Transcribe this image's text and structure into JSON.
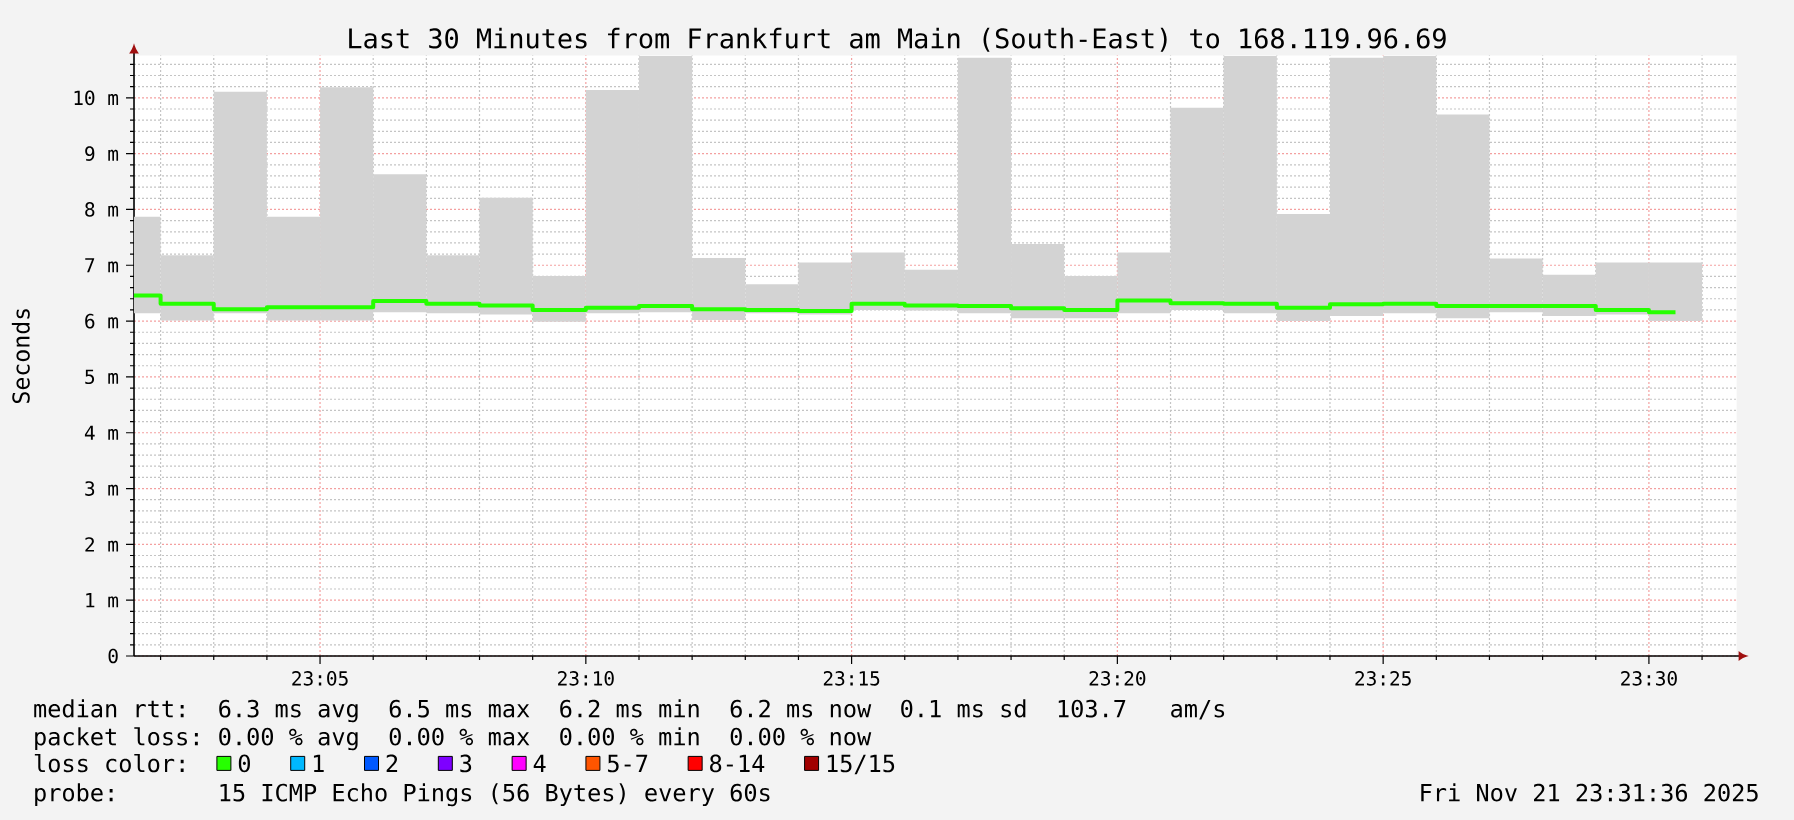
{
  "chart_data": {
    "type": "bar",
    "title": "Last 30 Minutes from Frankfurt am Main (South-East) to 168.119.96.69",
    "ylabel": "Seconds",
    "legend_title": "loss color:",
    "x": [
      23.025,
      23.04167,
      23.05833,
      23.075,
      23.09167,
      23.10833,
      23.125,
      23.14167,
      23.15833,
      23.175,
      23.19167,
      23.20833,
      23.225,
      23.24167,
      23.25833,
      23.275,
      23.29167,
      23.30833,
      23.325,
      23.34167,
      23.35833,
      23.375,
      23.39167,
      23.40833,
      23.425,
      23.44167,
      23.45833,
      23.475,
      23.49167,
      23.50833
    ],
    "series": [
      {
        "color": "#d3d3d3",
        "base": [
          6.14,
          6.01,
          6.14,
          6.01,
          6.01,
          6.16,
          6.14,
          6.12,
          5.99,
          6.14,
          6.16,
          6.02,
          6.14,
          6.12,
          6.2,
          6.19,
          6.14,
          6.05,
          6.05,
          6.14,
          6.2,
          6.14,
          6.0,
          6.09,
          6.14,
          6.05,
          6.16,
          6.09,
          6.12,
          6.0
        ],
        "values": [
          1.73,
          1.17,
          3.97,
          1.86,
          4.18,
          2.47,
          1.04,
          2.09,
          0.82,
          4.0,
          4.59,
          1.11,
          0.52,
          0.93,
          1.03,
          0.73,
          4.58,
          1.33,
          0.76,
          1.09,
          3.62,
          4.61,
          1.92,
          4.63,
          4.61,
          3.65,
          0.96,
          0.74,
          0.93,
          1.05
        ]
      },
      {
        "type": "step",
        "name": "0",
        "color": "#26ff00",
        "values": [
          6.46,
          6.31,
          6.21,
          6.25,
          6.25,
          6.36,
          6.31,
          6.28,
          6.2,
          6.24,
          6.27,
          6.21,
          6.2,
          6.18,
          6.31,
          6.28,
          6.27,
          6.23,
          6.2,
          6.37,
          6.32,
          6.31,
          6.24,
          6.3,
          6.31,
          6.27,
          6.27,
          6.27,
          6.2,
          6.16
        ]
      },
      {
        "type": "step",
        "name": "1",
        "color": "#00b8ff",
        "values": [
          null,
          null,
          null,
          null,
          null,
          null,
          null,
          null,
          null,
          null,
          null,
          null,
          null,
          null,
          null,
          null,
          null,
          null,
          null,
          null,
          null,
          null,
          null,
          null,
          null,
          null,
          null,
          null,
          null,
          null
        ]
      },
      {
        "type": "step",
        "name": "2",
        "color": "#0059ff",
        "values": [
          null,
          null,
          null,
          null,
          null,
          null,
          null,
          null,
          null,
          null,
          null,
          null,
          null,
          null,
          null,
          null,
          null,
          null,
          null,
          null,
          null,
          null,
          null,
          null,
          null,
          null,
          null,
          null,
          null,
          null
        ]
      },
      {
        "type": "step",
        "name": "3",
        "color": "#7e00ff",
        "values": [
          null,
          null,
          null,
          null,
          null,
          null,
          null,
          null,
          null,
          null,
          null,
          null,
          null,
          null,
          null,
          null,
          null,
          null,
          null,
          null,
          null,
          null,
          null,
          null,
          null,
          null,
          null,
          null,
          null,
          null
        ]
      },
      {
        "type": "step",
        "name": "4",
        "color": "#ff00ff",
        "values": [
          null,
          null,
          null,
          null,
          null,
          null,
          null,
          null,
          null,
          null,
          null,
          null,
          null,
          null,
          null,
          null,
          null,
          null,
          null,
          null,
          null,
          null,
          null,
          null,
          null,
          null,
          null,
          null,
          null,
          null
        ]
      },
      {
        "type": "step",
        "name": "5-7",
        "color": "#ff5500",
        "values": [
          null,
          null,
          null,
          null,
          null,
          null,
          null,
          null,
          null,
          null,
          null,
          null,
          null,
          null,
          null,
          null,
          null,
          null,
          null,
          null,
          null,
          null,
          null,
          null,
          null,
          null,
          null,
          null,
          null,
          null
        ]
      },
      {
        "type": "step",
        "name": "8-14",
        "color": "#ff0000",
        "values": [
          null,
          null,
          null,
          null,
          null,
          null,
          null,
          null,
          null,
          null,
          null,
          null,
          null,
          null,
          null,
          null,
          null,
          null,
          null,
          null,
          null,
          null,
          null,
          null,
          null,
          null,
          null,
          null,
          null,
          null
        ]
      },
      {
        "type": "step",
        "name": "15/15",
        "color": "#a10000",
        "values": [
          null,
          null,
          null,
          null,
          null,
          null,
          null,
          null,
          null,
          null,
          null,
          null,
          null,
          null,
          null,
          null,
          null,
          null,
          null,
          null,
          null,
          null,
          null,
          null,
          null,
          null,
          null,
          null,
          null,
          null
        ]
      }
    ],
    "xlim": [
      23.025,
      23.5275
    ],
    "ylim": [
      0,
      10.76
    ],
    "xticks": [
      {
        "value": 23.08333,
        "label": "23:05"
      },
      {
        "value": 23.16667,
        "label": "23:10"
      },
      {
        "value": 23.25,
        "label": "23:15"
      },
      {
        "value": 23.33333,
        "label": "23:20"
      },
      {
        "value": 23.41667,
        "label": "23:25"
      },
      {
        "value": 23.5,
        "label": "23:30"
      }
    ],
    "yticks": [
      0,
      {
        "value": 1,
        "label": "1 m"
      },
      {
        "value": 2,
        "label": "2 m"
      },
      {
        "value": 3,
        "label": "3 m"
      },
      {
        "value": 4,
        "label": "4 m"
      },
      {
        "value": 5,
        "label": "5 m"
      },
      {
        "value": 6,
        "label": "6 m"
      },
      {
        "value": 7,
        "label": "7 m"
      },
      {
        "value": 8,
        "label": "8 m"
      },
      {
        "value": 9,
        "label": "9 m"
      },
      {
        "value": 10,
        "label": "10 m"
      }
    ],
    "grid": true,
    "legend": "bottom",
    "annotations": [
      "median rtt:  6.3 ms avg  6.5 ms max  6.2 ms min  6.2 ms now  0.1 ms sd  103.7   am/s",
      "packet loss: 0.00 % avg  0.00 % max  0.00 % min  0.00 % now",
      "probe:       15 ICMP Echo Pings (56 Bytes) every 60s",
      "Fri Nov 21 23:31:36 2025"
    ]
  }
}
